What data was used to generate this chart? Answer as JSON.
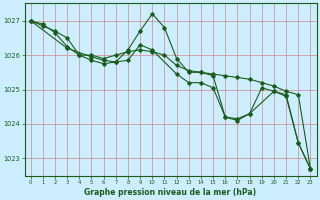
{
  "background_color": "#cceeff",
  "grid_color": "#cc8888",
  "line_color": "#1a5c1a",
  "title": "Graphe pression niveau de la mer (hPa)",
  "xlim": [
    -0.5,
    23.5
  ],
  "ylim": [
    1022.5,
    1027.5
  ],
  "yticks": [
    1023,
    1024,
    1025,
    1026,
    1027
  ],
  "xticks": [
    0,
    1,
    2,
    3,
    4,
    5,
    6,
    7,
    8,
    9,
    10,
    11,
    12,
    13,
    14,
    15,
    16,
    17,
    18,
    19,
    20,
    21,
    22,
    23
  ],
  "series1_x": [
    0,
    1,
    2,
    3,
    4,
    5,
    6,
    7,
    8,
    9,
    10,
    11,
    12,
    13,
    14,
    15,
    16,
    17,
    18,
    19,
    20,
    21,
    22,
    23
  ],
  "series1_y": [
    1027.0,
    1026.85,
    1026.7,
    1026.5,
    1026.0,
    1026.0,
    1025.9,
    1026.0,
    1026.1,
    1026.15,
    1026.1,
    1026.0,
    1025.7,
    1025.55,
    1025.5,
    1025.45,
    1025.4,
    1025.35,
    1025.3,
    1025.2,
    1025.1,
    1024.95,
    1024.85,
    1022.7
  ],
  "series2_x": [
    0,
    1,
    2,
    3,
    4,
    5,
    6,
    7,
    8,
    9,
    10,
    11,
    12,
    13,
    14,
    15,
    16,
    17,
    18,
    19,
    20,
    21,
    22,
    23
  ],
  "series2_y": [
    1027.0,
    1026.9,
    1026.65,
    1026.25,
    1026.0,
    1025.85,
    1025.75,
    1025.8,
    1026.15,
    1026.7,
    1027.2,
    1026.8,
    1025.9,
    1025.5,
    1025.5,
    1025.4,
    1024.2,
    1024.1,
    1024.3,
    1025.05,
    1024.95,
    1024.85,
    1023.45,
    1022.7
  ],
  "series3_x": [
    0,
    3,
    5,
    6,
    7,
    8,
    9,
    10,
    12,
    13,
    14,
    15,
    16,
    17,
    18,
    20,
    21,
    22,
    23
  ],
  "series3_y": [
    1027.0,
    1026.2,
    1025.95,
    1025.85,
    1025.8,
    1025.85,
    1026.3,
    1026.15,
    1025.45,
    1025.2,
    1025.2,
    1025.05,
    1024.2,
    1024.15,
    1024.3,
    1024.95,
    1024.8,
    1023.45,
    1022.7
  ]
}
